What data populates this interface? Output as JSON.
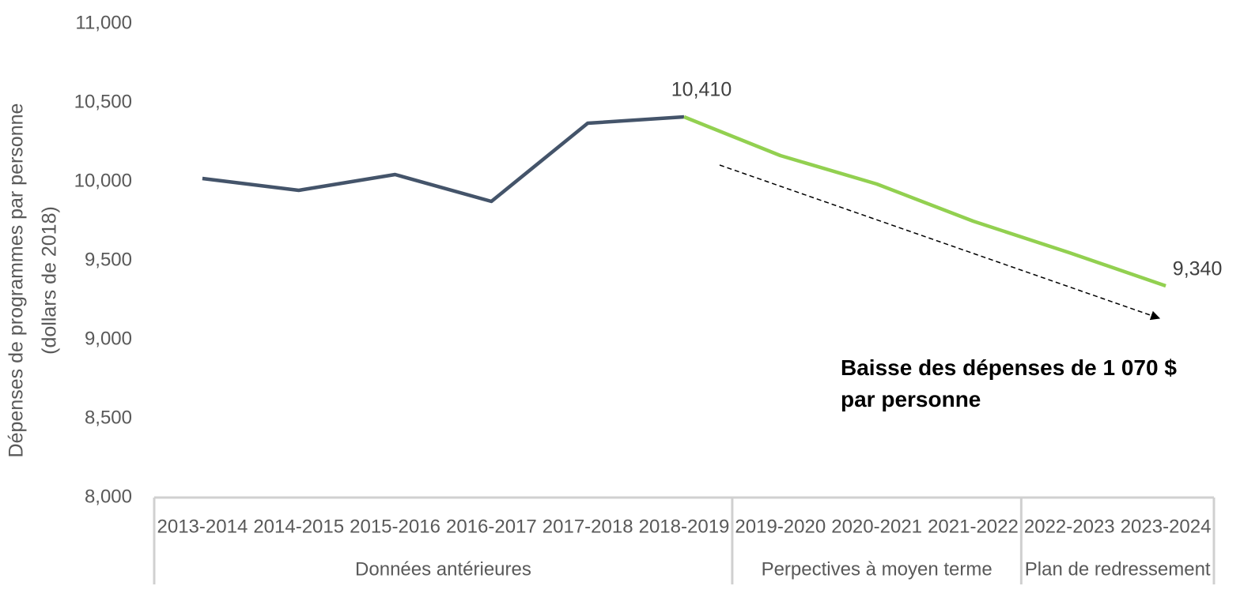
{
  "chart_data": {
    "type": "line",
    "ylabel": [
      "Dépenses de programmes par personne",
      "(dollars de 2018)"
    ],
    "categories": [
      "2013-2014",
      "2014-2015",
      "2015-2016",
      "2016-2017",
      "2017-2018",
      "2018-2019",
      "2019-2020",
      "2020-2021",
      "2021-2022",
      "2022-2023",
      "2023-2024"
    ],
    "category_groups": [
      {
        "label": "Données antérieures",
        "count": 6
      },
      {
        "label": "Perpectives à moyen terme",
        "count": 3
      },
      {
        "label": "Plan de redressement",
        "count": 2
      }
    ],
    "series": [
      {
        "color": "#44546a",
        "values": [
          10020,
          9945,
          10045,
          9875,
          10370,
          10410,
          null,
          null,
          null,
          null,
          null
        ],
        "value_labels": [
          null,
          null,
          null,
          null,
          null,
          "10,410",
          null,
          null,
          null,
          null,
          null
        ]
      },
      {
        "color": "#92d050",
        "values": [
          null,
          null,
          null,
          null,
          null,
          10410,
          10165,
          9985,
          9750,
          9550,
          9340
        ],
        "value_labels": [
          null,
          null,
          null,
          null,
          null,
          null,
          null,
          null,
          null,
          null,
          "9,340"
        ]
      }
    ],
    "ylim": [
      8000,
      11000
    ],
    "yticks": [
      {
        "value": 8000,
        "label": "8,000"
      },
      {
        "value": 8500,
        "label": "8,500"
      },
      {
        "value": 9000,
        "label": "9,000"
      },
      {
        "value": 9500,
        "label": "9,500"
      },
      {
        "value": 10000,
        "label": "10,000"
      },
      {
        "value": 10500,
        "label": "10,500"
      },
      {
        "value": 11000,
        "label": "11,000"
      }
    ],
    "annotation": "Baisse des dépenses de 1 070 $ par personne"
  }
}
